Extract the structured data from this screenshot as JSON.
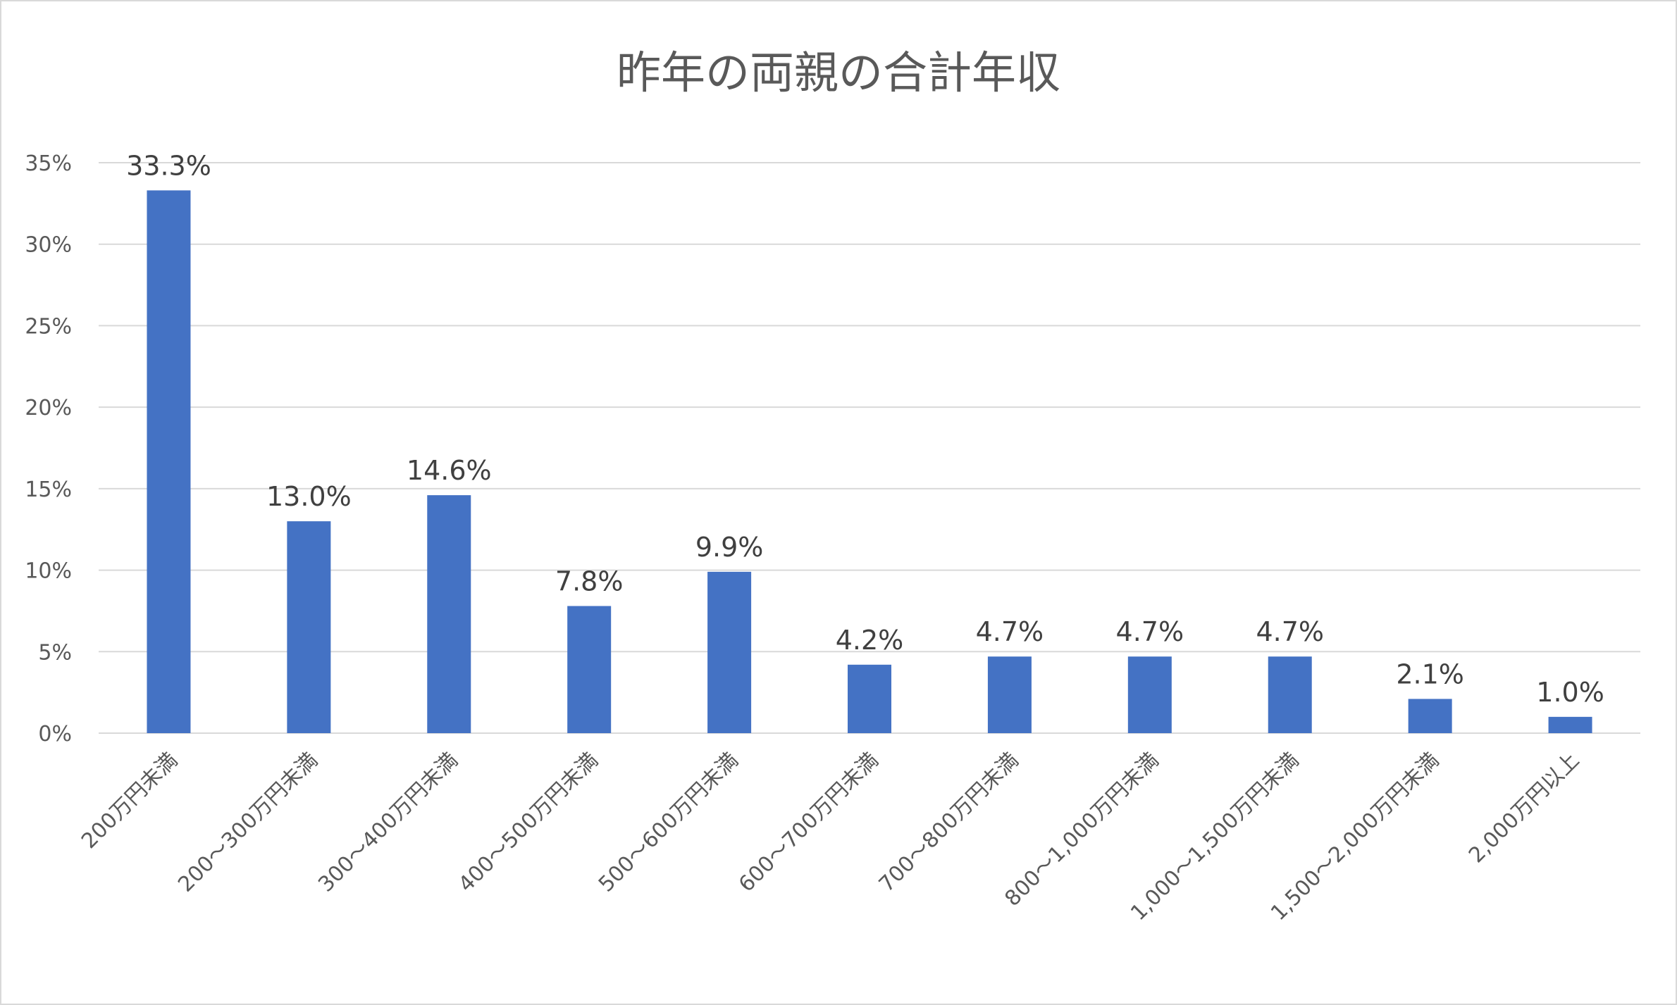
{
  "chart_data": {
    "type": "bar",
    "title": "昨年の両親の合計年収",
    "xlabel": "",
    "ylabel": "",
    "categories": [
      "200万円未満",
      "200～300万円未満",
      "300～400万円未満",
      "400～500万円未満",
      "500～600万円未満",
      "600～700万円未満",
      "700～800万円未満",
      "800～1,000万円未満",
      "1,000～1,500万円未満",
      "1,500～2,000万円未満",
      "2,000万円以上"
    ],
    "values": [
      33.3,
      13.0,
      14.6,
      7.8,
      9.9,
      4.2,
      4.7,
      4.7,
      4.7,
      2.1,
      1.0
    ],
    "data_labels": [
      "33.3%",
      "13.0%",
      "14.6%",
      "7.8%",
      "9.9%",
      "4.2%",
      "4.7%",
      "4.7%",
      "4.7%",
      "2.1%",
      "1.0%"
    ],
    "y_ticks": [
      0,
      5,
      10,
      15,
      20,
      25,
      30,
      35
    ],
    "y_tick_labels": [
      "0%",
      "5%",
      "10%",
      "15%",
      "20%",
      "25%",
      "30%",
      "35%"
    ],
    "ylim": [
      0,
      35
    ],
    "grid": true,
    "legend": "none",
    "colors": {
      "bar": "#4472c4",
      "gridline": "#d9d9d9",
      "title": "#595959",
      "tick": "#595959",
      "data_label": "#404040"
    }
  }
}
